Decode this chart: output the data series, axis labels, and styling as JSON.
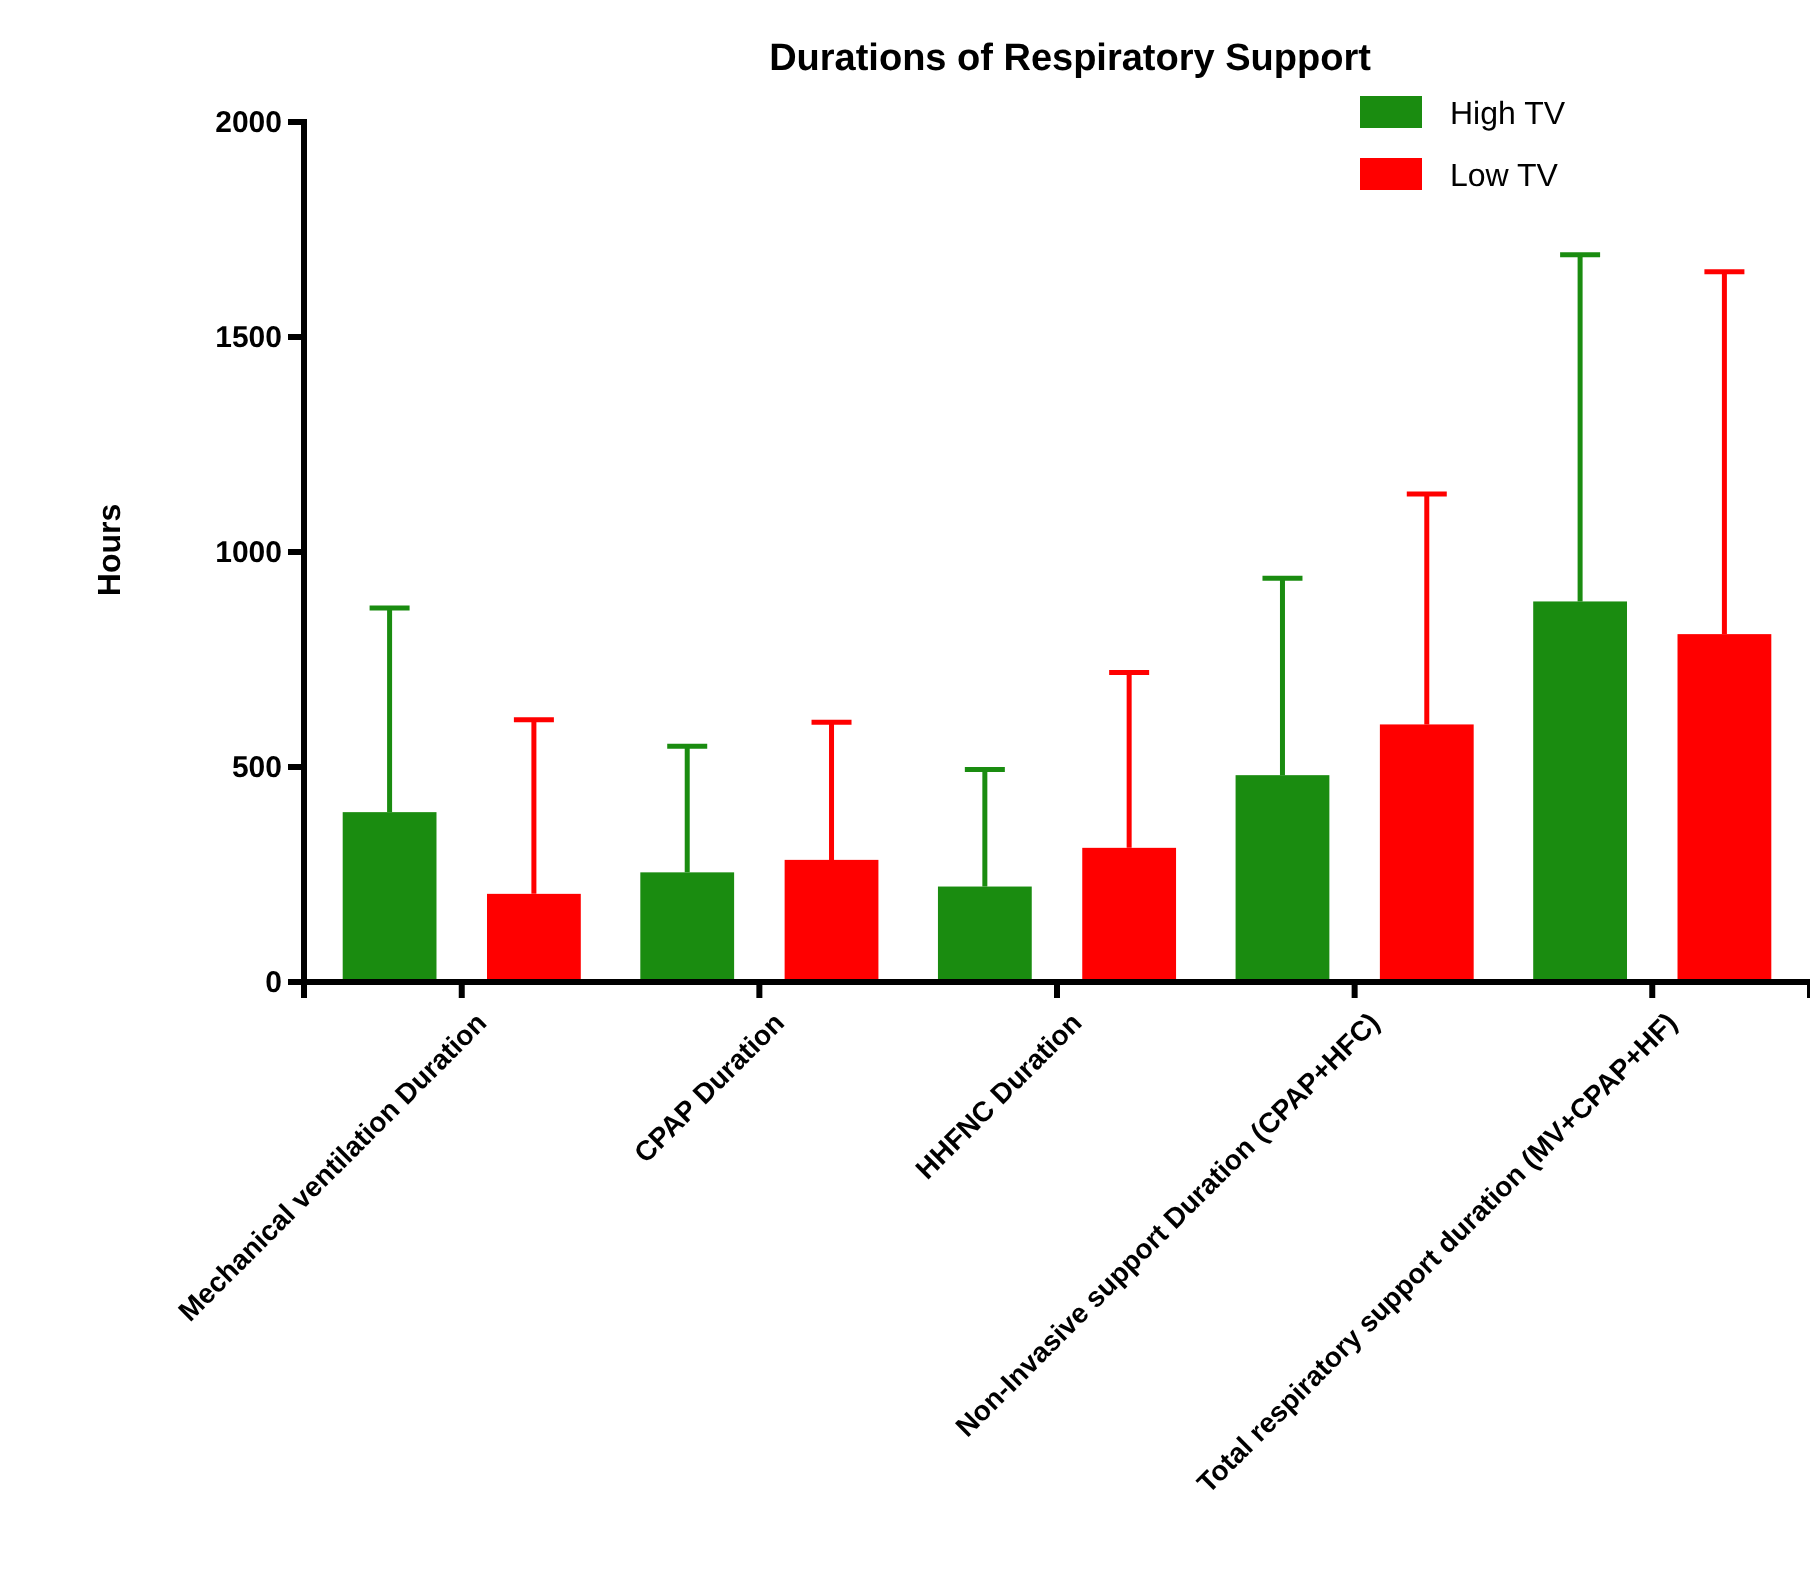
{
  "chart_data": {
    "type": "bar",
    "title": "Durations of Respiratory Support",
    "ylabel": "Hours",
    "categories": [
      "Mechanical ventilation Duration",
      "CPAP Duration",
      "HHFNC Duration",
      "Non-Invasive support Duration (CPAP+HFC)",
      "Total respiratory support duration (MV+CPAP+HF)"
    ],
    "series": [
      {
        "name": "High TV",
        "color": "#1a8c10",
        "values": [
          395,
          255,
          222,
          481,
          885
        ],
        "errors": [
          [
            395,
            870
          ],
          [
            255,
            548
          ],
          [
            222,
            494
          ],
          [
            481,
            939
          ],
          [
            885,
            1691
          ]
        ]
      },
      {
        "name": "Low TV",
        "color": "#ff0000",
        "values": [
          205,
          284,
          312,
          599,
          809
        ],
        "errors": [
          [
            205,
            610
          ],
          [
            284,
            604
          ],
          [
            312,
            720
          ],
          [
            599,
            1135
          ],
          [
            809,
            1652
          ]
        ]
      }
    ],
    "ylim": [
      0,
      2000
    ],
    "yticks": [
      0,
      500,
      1000,
      1500,
      2000
    ],
    "grid": false,
    "legend": "top right"
  }
}
